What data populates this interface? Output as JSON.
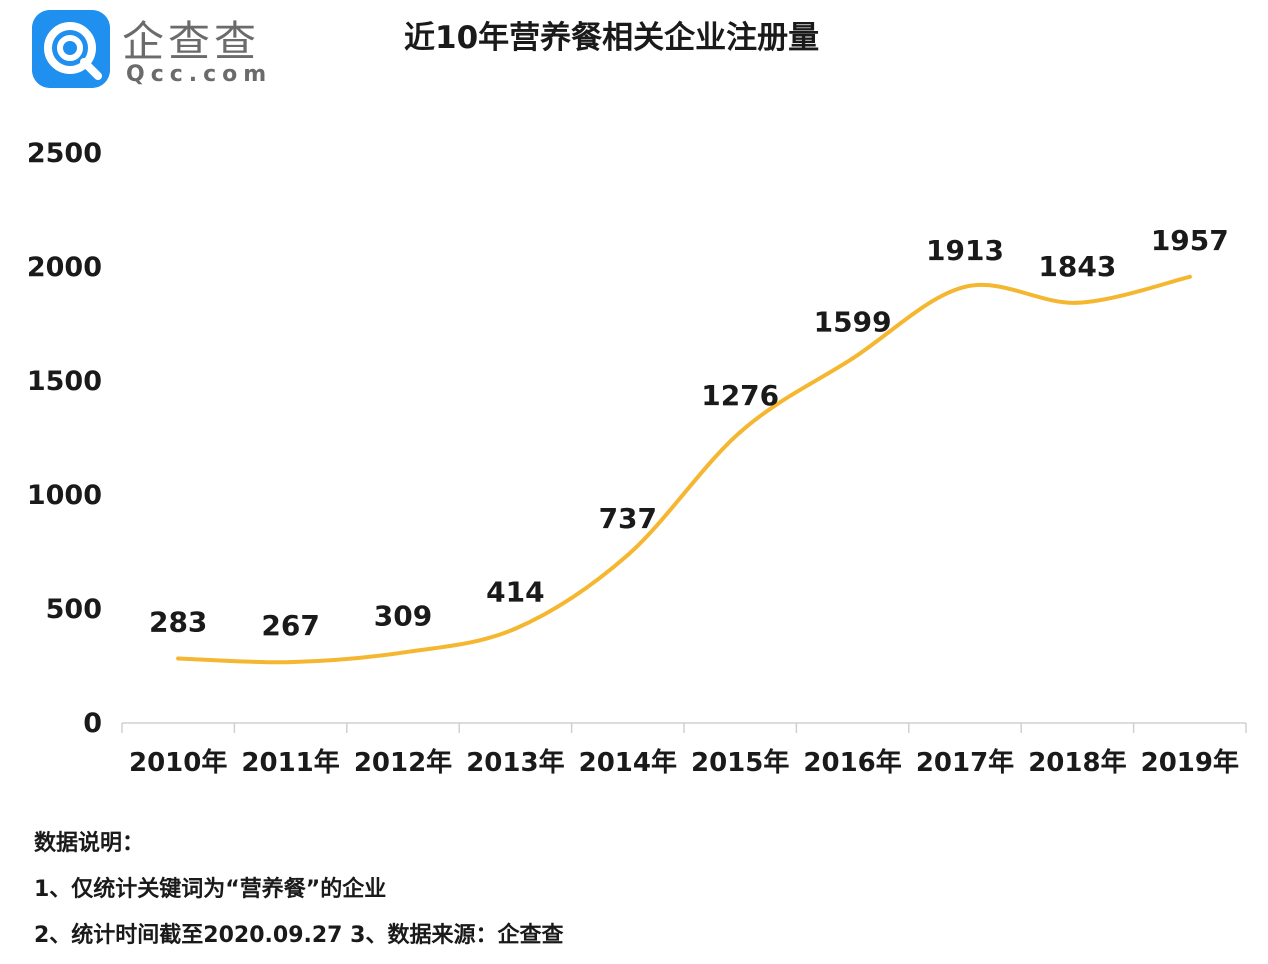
{
  "logo": {
    "name": "企查查",
    "domain": "Qcc.com",
    "icon": "qcc-logo-icon",
    "color": "#1f8ff0"
  },
  "title": "近10年营养餐相关企业注册量",
  "chart_data": {
    "type": "line",
    "smooth": true,
    "categories": [
      "2010年",
      "2011年",
      "2012年",
      "2013年",
      "2014年",
      "2015年",
      "2016年",
      "2017年",
      "2018年",
      "2019年"
    ],
    "values": [
      283,
      267,
      309,
      414,
      737,
      1276,
      1599,
      1913,
      1843,
      1957
    ],
    "data_labels": [
      "283",
      "267",
      "309",
      "414",
      "737",
      "1276",
      "1599",
      "1913",
      "1843",
      "1957"
    ],
    "y_ticks": [
      "0",
      "500",
      "1000",
      "1500",
      "2000",
      "2500"
    ],
    "ylim": [
      0,
      2500
    ],
    "grid": false,
    "line_color": "#f5b630",
    "title": "近10年营养餐相关企业注册量"
  },
  "notes": {
    "heading": "数据说明：",
    "line1": "1、仅统计关键词为“营养餐”的企业",
    "line2": "2、统计时间截至2020.09.27  3、数据来源：企查查"
  }
}
